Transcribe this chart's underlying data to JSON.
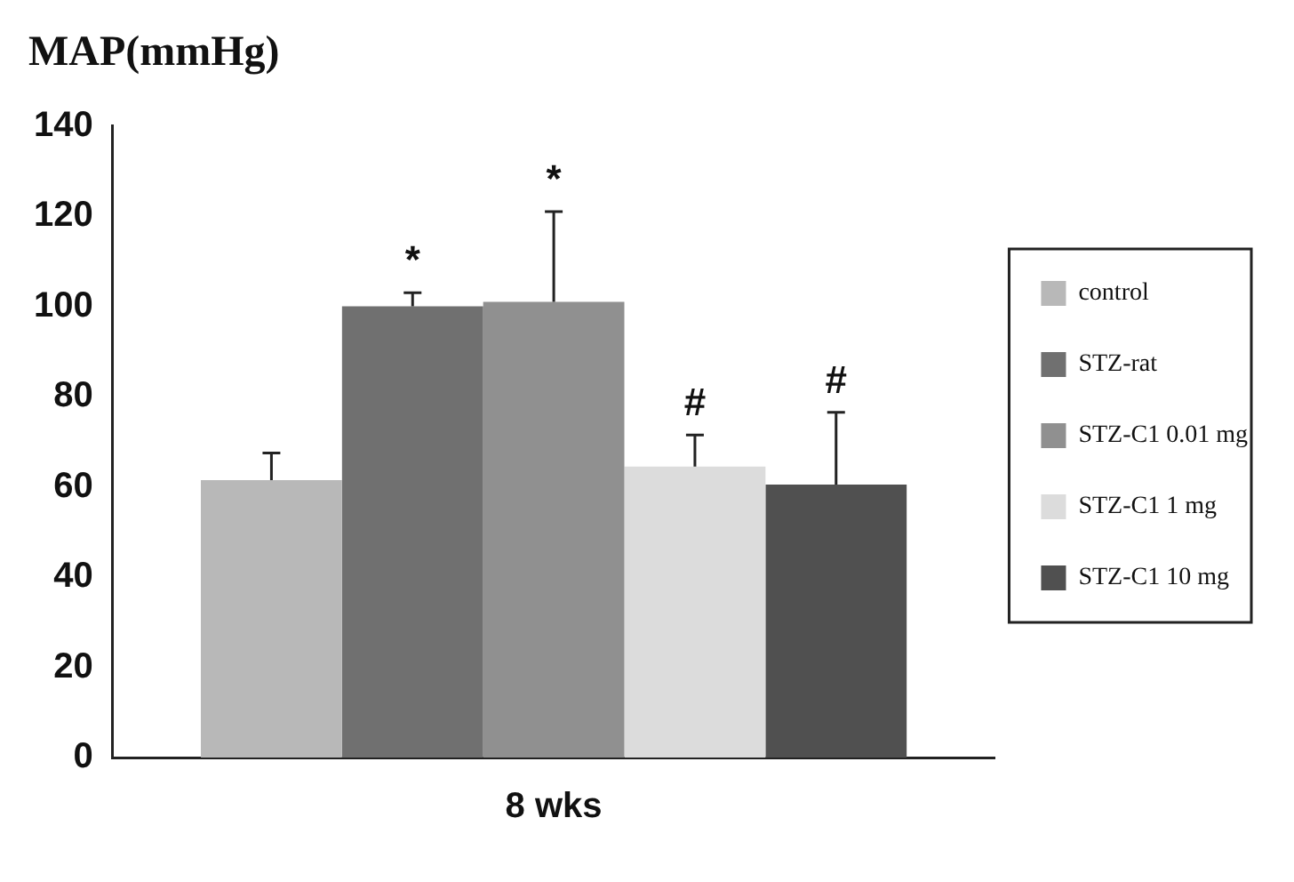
{
  "chart_data": {
    "type": "bar",
    "ylabel": "MAP(mmHg)",
    "categories": [
      "8 wks"
    ],
    "series": [
      {
        "name": "control",
        "color": "#b8b8b8",
        "values": [
          61.5
        ],
        "errors": [
          6
        ]
      },
      {
        "name": "STZ-rat",
        "color": "#707070",
        "values": [
          100
        ],
        "errors": [
          3
        ],
        "value_labels": [
          "*"
        ]
      },
      {
        "name": "STZ-C1 0.01 mg",
        "color": "#909090",
        "values": [
          101
        ],
        "errors": [
          20
        ],
        "value_labels": [
          "*"
        ]
      },
      {
        "name": "STZ-C1 1 mg",
        "color": "#dcdcdc",
        "values": [
          64.5
        ],
        "errors": [
          7
        ],
        "value_labels": [
          "#"
        ]
      },
      {
        "name": "STZ-C1 10 mg",
        "color": "#505050",
        "values": [
          60.5
        ],
        "errors": [
          16
        ],
        "value_labels": [
          "#"
        ]
      }
    ],
    "ylim": [
      0,
      140
    ],
    "yticks": [
      0,
      20,
      40,
      60,
      80,
      100,
      120,
      140
    ],
    "grid": false,
    "legend": "right"
  }
}
